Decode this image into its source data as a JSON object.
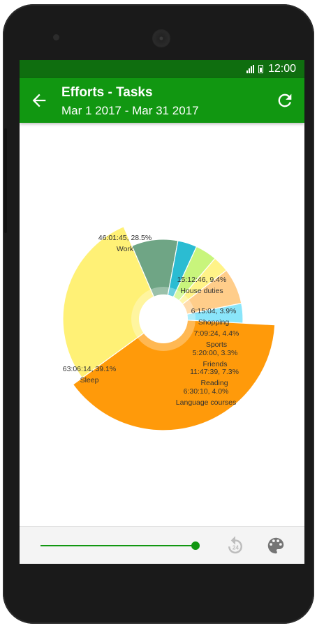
{
  "status_bar": {
    "time": "12:00",
    "icons": [
      "signal-icon",
      "battery-icon"
    ]
  },
  "app_bar": {
    "title": "Efforts - Tasks",
    "subtitle": "Mar 1 2017 - Mar 31 2017",
    "back_icon": "arrow-left-icon",
    "refresh_icon": "refresh-icon"
  },
  "chart_data": {
    "type": "pie",
    "style": "donut",
    "categories": [
      "Work",
      "House duties",
      "Shopping",
      "Sports",
      "Friends",
      "Reading",
      "Language courses",
      "Sleep"
    ],
    "series": [
      {
        "values": [
          28.5,
          9.4,
          3.9,
          4.4,
          3.3,
          7.3,
          4.0,
          39.1
        ],
        "durations": [
          "46:01:45",
          "15:12:46",
          "6:15:04",
          "7:09:24",
          "5:20:00",
          "11:47:39",
          "6:30:10",
          "63:06:14"
        ]
      }
    ],
    "labels": [
      "46:01:45, 28.5%",
      "15:12:46, 9.4%",
      "6:15:04, 3.9%",
      "7:09:24, 4.4%",
      "5:20:00, 3.3%",
      "11:47:39, 7.3%",
      "6:30:10, 4.0%",
      "63:06:14, 39.1%"
    ],
    "colors": [
      "#FFF176",
      "#6FA585",
      "#2BBCD2",
      "#C8F57C",
      "#FFF388",
      "#FFCD8A",
      "#8AE5FA",
      "#FF9A0A"
    ],
    "start_angle_deg": 234,
    "direction": "clockwise"
  },
  "bottom_bar": {
    "slider_value": 1.0,
    "replay_icon": "replay-24-icon",
    "palette_icon": "palette-icon"
  },
  "theme": {
    "primary": "#119711",
    "primary_dark": "#0f6e0f"
  }
}
